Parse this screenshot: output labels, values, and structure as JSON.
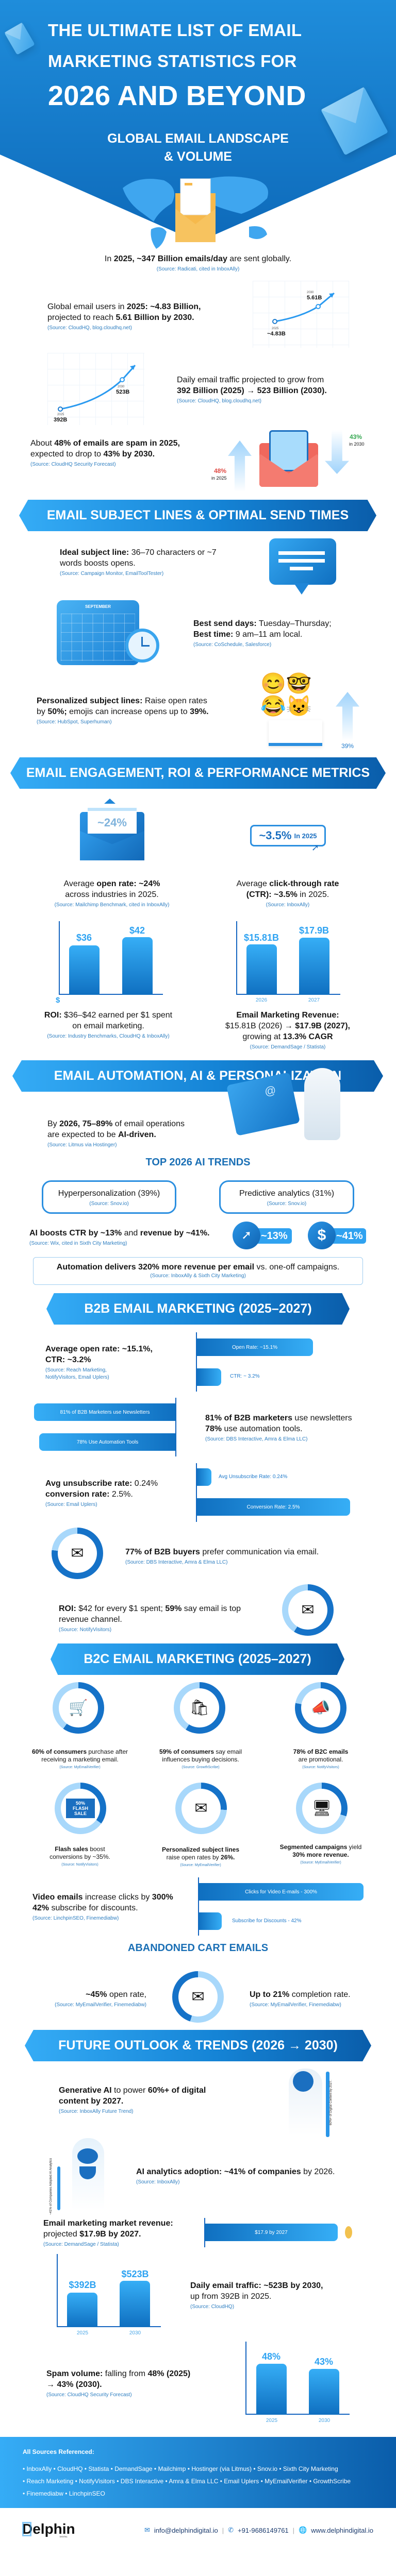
{
  "header": {
    "title_lines": [
      "THE ULTIMATE LIST OF EMAIL",
      "MARKETING STATISTICS FOR",
      "2026 AND BEYOND"
    ],
    "colors": {
      "primary": "#1f8ddb",
      "dark": "#0a5daa",
      "source": "#2f7fc1"
    }
  },
  "global": {
    "heading_lines": [
      "GLOBAL EMAIL LANDSCAPE",
      "& VOLUME"
    ],
    "daily": {
      "text": [
        [
          "In ",
          0
        ],
        [
          "2025, ~347 Billion emails/day",
          1
        ],
        [
          " are sent globally.",
          0
        ]
      ],
      "source": "(Source: Radicati, cited in InboxAlly)"
    },
    "users": {
      "text": [
        [
          "Global email users in ",
          0
        ],
        [
          "2025: ~4.83 Billion,",
          1
        ],
        [
          "\nprojected to reach ",
          0
        ],
        [
          "5.61 Billion by 2030.",
          1
        ]
      ],
      "source": "(Source: CloudHQ, blog.cloudhq.net)",
      "chart": {
        "type": "line",
        "points": [
          {
            "year": "2025",
            "label": "~4.83B",
            "value": 4.83
          },
          {
            "year": "2030",
            "label": "5.61B",
            "value": 5.61
          }
        ]
      }
    },
    "traffic": {
      "text": [
        [
          "Daily email traffic projected to grow from\n",
          0
        ],
        [
          "392 Billion (2025) → 523 Billion (2030).",
          1
        ]
      ],
      "source": "(Source: CloudHQ, blog.cloudhq.net)",
      "chart": {
        "type": "line",
        "points": [
          {
            "year": "2025",
            "label": "392B",
            "value": 392
          },
          {
            "year": "2030",
            "label": "523B",
            "value": 523
          }
        ]
      }
    },
    "spam": {
      "text": [
        [
          "About ",
          0
        ],
        [
          "48% of emails are spam in 2025,",
          1
        ],
        [
          "\nexpected to drop to ",
          0
        ],
        [
          "43% by 2030.",
          1
        ]
      ],
      "source": "(Source: CloudHQ Security Forecast)",
      "up_value": "48%",
      "up_caption": "in 2025",
      "down_value": "43%",
      "down_caption": "in 2030"
    }
  },
  "subject": {
    "banner": "EMAIL SUBJECT LINES & OPTIMAL SEND TIMES",
    "ideal": {
      "text": [
        [
          "Ideal subject line:",
          1
        ],
        [
          " 36–70 characters or ~7\nwords boosts opens.",
          0
        ]
      ],
      "source": "(Source: Campaign Monitor, EmailToolTester)"
    },
    "send": {
      "text": [
        [
          "Best send days:",
          1
        ],
        [
          " Tuesday–Thursday;\n",
          0
        ],
        [
          "Best time:",
          1
        ],
        [
          " 9 am–11 am local.",
          0
        ]
      ],
      "source": "(Source: CoSchedule, Salesforce)",
      "calendar_month": "SEPTEMBER"
    },
    "personal": {
      "text": [
        [
          "Personalized subject lines:",
          1
        ],
        [
          " Raise open rates\nby ",
          0
        ],
        [
          "50%;",
          1
        ],
        [
          " emojis can increase opens up to ",
          0
        ],
        [
          "39%.",
          1
        ]
      ],
      "source": "(Source: HubSpot, Superhuman)",
      "badge": "39%"
    }
  },
  "engagement": {
    "banner": "EMAIL ENGAGEMENT, ROI & PERFORMANCE METRICS",
    "open": {
      "icon_value": "~24%",
      "text": [
        [
          "Average ",
          0
        ],
        [
          "open rate: ~24%",
          1
        ],
        [
          "\nacross industries in 2025.",
          0
        ]
      ],
      "source": "(Source: Mailchimp Benchmark, cited in InboxAlly)"
    },
    "ctr": {
      "badge_value": "~3.5%",
      "badge_suffix": "In 2025",
      "text": [
        [
          "Average ",
          0
        ],
        [
          "click-through rate\n(CTR): ~3.5%",
          1
        ],
        [
          " in 2025.",
          0
        ]
      ],
      "source": "(Source: InboxAlly)"
    },
    "roi": {
      "text": [
        [
          "ROI:",
          1
        ],
        [
          " $36–$42 earned per $1 spent\non email marketing.",
          0
        ]
      ],
      "source": "(Source: Industry Benchmarks, CloudHQ & InboxAlly)",
      "chart": {
        "type": "bar",
        "axis_label": "$",
        "labels": [
          "$36",
          "$42"
        ],
        "values": [
          36,
          42
        ]
      }
    },
    "revenue": {
      "text": [
        [
          "Email Marketing Revenue:\n",
          1
        ],
        [
          "$15.81B (2026) → ",
          0
        ],
        [
          "$17.9B (2027),",
          1
        ],
        [
          "\ngrowing at ",
          0
        ],
        [
          "13.3% CAGR",
          1
        ]
      ],
      "source": "(Source: DemandSage / Statista)",
      "chart": {
        "type": "bar",
        "categories": [
          "2026",
          "2027"
        ],
        "labels": [
          "$15.81B",
          "$17.9B"
        ],
        "values": [
          15.81,
          17.9
        ]
      }
    }
  },
  "automation": {
    "banner": "EMAIL AUTOMATION, AI & PERSONALIZATION",
    "ai_driven": {
      "text": [
        [
          "By ",
          0
        ],
        [
          "2026, 75–89%",
          1
        ],
        [
          " of email operations\nare expected to be ",
          0
        ],
        [
          "AI-driven.",
          1
        ]
      ],
      "source": "(Source: Litmus via Hostinger)"
    },
    "trends_title": "TOP 2026 AI TRENDS",
    "trends": [
      {
        "label": "Hyperpersonalization (39%)",
        "source": "(Source: Snov.io)"
      },
      {
        "label": "Predictive analytics (31%)",
        "source": "(Source: Snov.io)"
      }
    ],
    "boost": {
      "text": [
        [
          "AI boosts CTR by ~13%",
          1
        ],
        [
          " and ",
          0
        ],
        [
          "revenue by ~41%.",
          1
        ]
      ],
      "source": "(Source: Wix, cited in Sixth City Marketing)",
      "ctr_badge": "~13%",
      "revenue_badge": "~41%"
    },
    "auto_box": {
      "text": [
        [
          "Automation delivers 320% more revenue per email",
          1
        ],
        [
          " vs. one-off campaigns.",
          0
        ]
      ],
      "source": "(Source: InboxAlly & Sixth City Marketing)"
    }
  },
  "b2b": {
    "banner": "B2B EMAIL MARKETING (2025–2027)",
    "open": {
      "text": [
        [
          "Average open rate: ~15.1%,\nCTR: ~3.2%",
          1
        ]
      ],
      "source": "(Source: Reach Marketing,\nNotifyVisitors, Email Uplers)",
      "bars": [
        {
          "label": "Open Rate: ~15.1%",
          "value": 15.1
        },
        {
          "label": "CTR: ~ 3.2%",
          "value": 3.2
        }
      ]
    },
    "usage": {
      "text": [
        [
          "81% of B2B marketers",
          1
        ],
        [
          " use newsletters\n",
          0
        ],
        [
          "78%",
          1
        ],
        [
          " use automation tools.",
          0
        ]
      ],
      "source": "(Source: DBS Interactive, Amra & Elma LLC)",
      "bars": [
        {
          "label": "81% of B2B Marketers use Newsletters",
          "value": 81
        },
        {
          "label": "78% Use Automation Tools",
          "value": 78
        }
      ]
    },
    "unsub": {
      "text": [
        [
          "Avg unsubscribe rate:",
          1
        ],
        [
          " 0.24%\n",
          0
        ],
        [
          "conversion rate:",
          1
        ],
        [
          " 2.5%.",
          0
        ]
      ],
      "source": "(Source: Email Uplers)",
      "bars": [
        {
          "label": "Avg Unsubscribe Rate: 0.24%",
          "value": 0.24
        },
        {
          "label": "Conversion Rate: 2.5%",
          "value": 2.5
        }
      ]
    },
    "buyers": {
      "text": [
        [
          "77% of B2B buyers",
          1
        ],
        [
          " prefer communication via email.",
          0
        ]
      ],
      "source": "(Source: DBS Interactive, Amra & Elma LLC)",
      "ring_percent": 77
    },
    "roi": {
      "text": [
        [
          "ROI:",
          1
        ],
        [
          " $42 for every $1 spent; ",
          0
        ],
        [
          "59%",
          1
        ],
        [
          " say email is top\nrevenue channel.",
          0
        ]
      ],
      "source": "(Source: NotifyVisitors)",
      "ring_percent": 59
    }
  },
  "b2c": {
    "banner": "B2C EMAIL MARKETING (2025–2027)",
    "items": [
      {
        "icon": "shopping-cart-icon",
        "percent": 60,
        "text": [
          [
            "60% of consumers",
            1
          ],
          [
            " purchase after\nreceiving a marketing email.",
            0
          ]
        ],
        "source": "(Source: MyEmailVerifier)"
      },
      {
        "icon": "shopper-icon",
        "percent": 59,
        "text": [
          [
            "59% of consumers",
            1
          ],
          [
            " say email\ninfluences buying decisions.",
            0
          ]
        ],
        "source": "(Source: GrowthScribe)"
      },
      {
        "icon": "megaphone-icon",
        "percent": 78,
        "text": [
          [
            "78% of B2C emails",
            1
          ],
          [
            "\nare promotional.",
            0
          ]
        ],
        "source": "(Source: NotifyVisitors)"
      },
      {
        "icon": "flash-sale-icon",
        "percent": 35,
        "flash_text": "50% FLASH SALE",
        "text": [
          [
            "Flash sales",
            1
          ],
          [
            " boost\nconversions by ~35%.",
            0
          ]
        ],
        "source": "(Source: NotifyVisitors)"
      },
      {
        "icon": "open-envelope-icon",
        "percent": 26,
        "text": [
          [
            "Personalized subject lines\n",
            1
          ],
          [
            "raise open rates by ",
            0
          ],
          [
            "26%.",
            1
          ]
        ],
        "source": "(Source: MyEmailVerifier)"
      },
      {
        "icon": "product-page-icon",
        "percent": 30,
        "text": [
          [
            "Segmented campaigns",
            1
          ],
          [
            " yield\n",
            0
          ],
          [
            "30% more revenue.",
            1
          ]
        ],
        "source": "(Source: MyEmailVerifier)"
      }
    ],
    "video": {
      "text": [
        [
          "Video emails",
          1
        ],
        [
          " increase clicks by ",
          0
        ],
        [
          "300%\n42%",
          1
        ],
        [
          " subscribe for discounts.",
          0
        ]
      ],
      "source": "(Source: LinchpinSEO, Finemediabw)",
      "bars": [
        {
          "label": "Clicks for Video E-mails - 300%",
          "value": 300
        },
        {
          "label": "Subscribe for Discounts - 42%",
          "value": 42
        }
      ]
    },
    "cart_title": "ABANDONED CART EMAILS",
    "cart_open": {
      "text": [
        [
          "~45%",
          1
        ],
        [
          " open rate,",
          0
        ]
      ],
      "source": "(Source: MyEmailVerifier, Finemediabw)"
    },
    "cart_complete": {
      "text": [
        [
          "Up to 21%",
          1
        ],
        [
          " completion rate.",
          0
        ]
      ],
      "source": "(Source: MyEmailVerifier, Finemediabw)"
    }
  },
  "future": {
    "banner": "FUTURE OUTLOOK & TRENDS (2026 → 2030)",
    "genai": {
      "text": [
        [
          "Generative AI",
          1
        ],
        [
          " to power ",
          0
        ],
        [
          "60%+ of digital\ncontent by 2027.",
          1
        ]
      ],
      "source": "(Source: InboxAlly Future Trend)",
      "vertical_label": "60%+ of Digital Content by 2027."
    },
    "analytics": {
      "text": [
        [
          "AI analytics adoption: ~41% of companies",
          1
        ],
        [
          " by 2026.",
          0
        ]
      ],
      "source": "(Source: InboxAlly)",
      "vertical_label": "~41% of Companies Adopted AI Analytics"
    },
    "market": {
      "text": [
        [
          "Email marketing market revenue:\n",
          1
        ],
        [
          "projected ",
          0
        ],
        [
          "$17.9B by 2027.",
          1
        ]
      ],
      "source": "(Source: DemandSage / Statista)",
      "bar": {
        "label": "$17.9 by 2027",
        "value": 17.9
      }
    },
    "traffic": {
      "text": [
        [
          "Daily email traffic: ~523B by 2030,",
          1
        ],
        [
          "\nup from 392B in 2025.",
          0
        ]
      ],
      "source": "(Source: CloudHQ)",
      "chart": {
        "type": "bar",
        "categories": [
          "2025",
          "2030"
        ],
        "labels": [
          "$392B",
          "$523B"
        ],
        "values": [
          392,
          523
        ]
      }
    },
    "spam": {
      "text": [
        [
          "Spam volume:",
          1
        ],
        [
          " falling from ",
          0
        ],
        [
          "48% (2025)\n→ 43% (2030).",
          1
        ]
      ],
      "source": "(Source: CloudHQ Security Forecast)",
      "chart": {
        "type": "bar",
        "categories": [
          "2025",
          "2030"
        ],
        "labels": [
          "48%",
          "43%"
        ],
        "values": [
          48,
          43
        ]
      }
    }
  },
  "footer": {
    "sources_title": "All Sources Referenced:",
    "source_lines": [
      "• InboxAlly • CloudHQ • Statista • DemandSage • Mailchimp • Hostinger (via Litmus) • Snov.io • Sixth City Marketing",
      "• Reach Marketing • NotifyVisitors • DBS Interactive • Amra & Elma LLC • Email Uplers • MyEmailVerifier • GrowthScribe",
      "• Finemediabw • LinchpinSEO"
    ],
    "logo": "Delphin",
    "logo_sub": "DIGITAL",
    "email": "info@delphindigital.io",
    "phone": "+91-9686149761",
    "website": "www.delphindigital.io"
  }
}
